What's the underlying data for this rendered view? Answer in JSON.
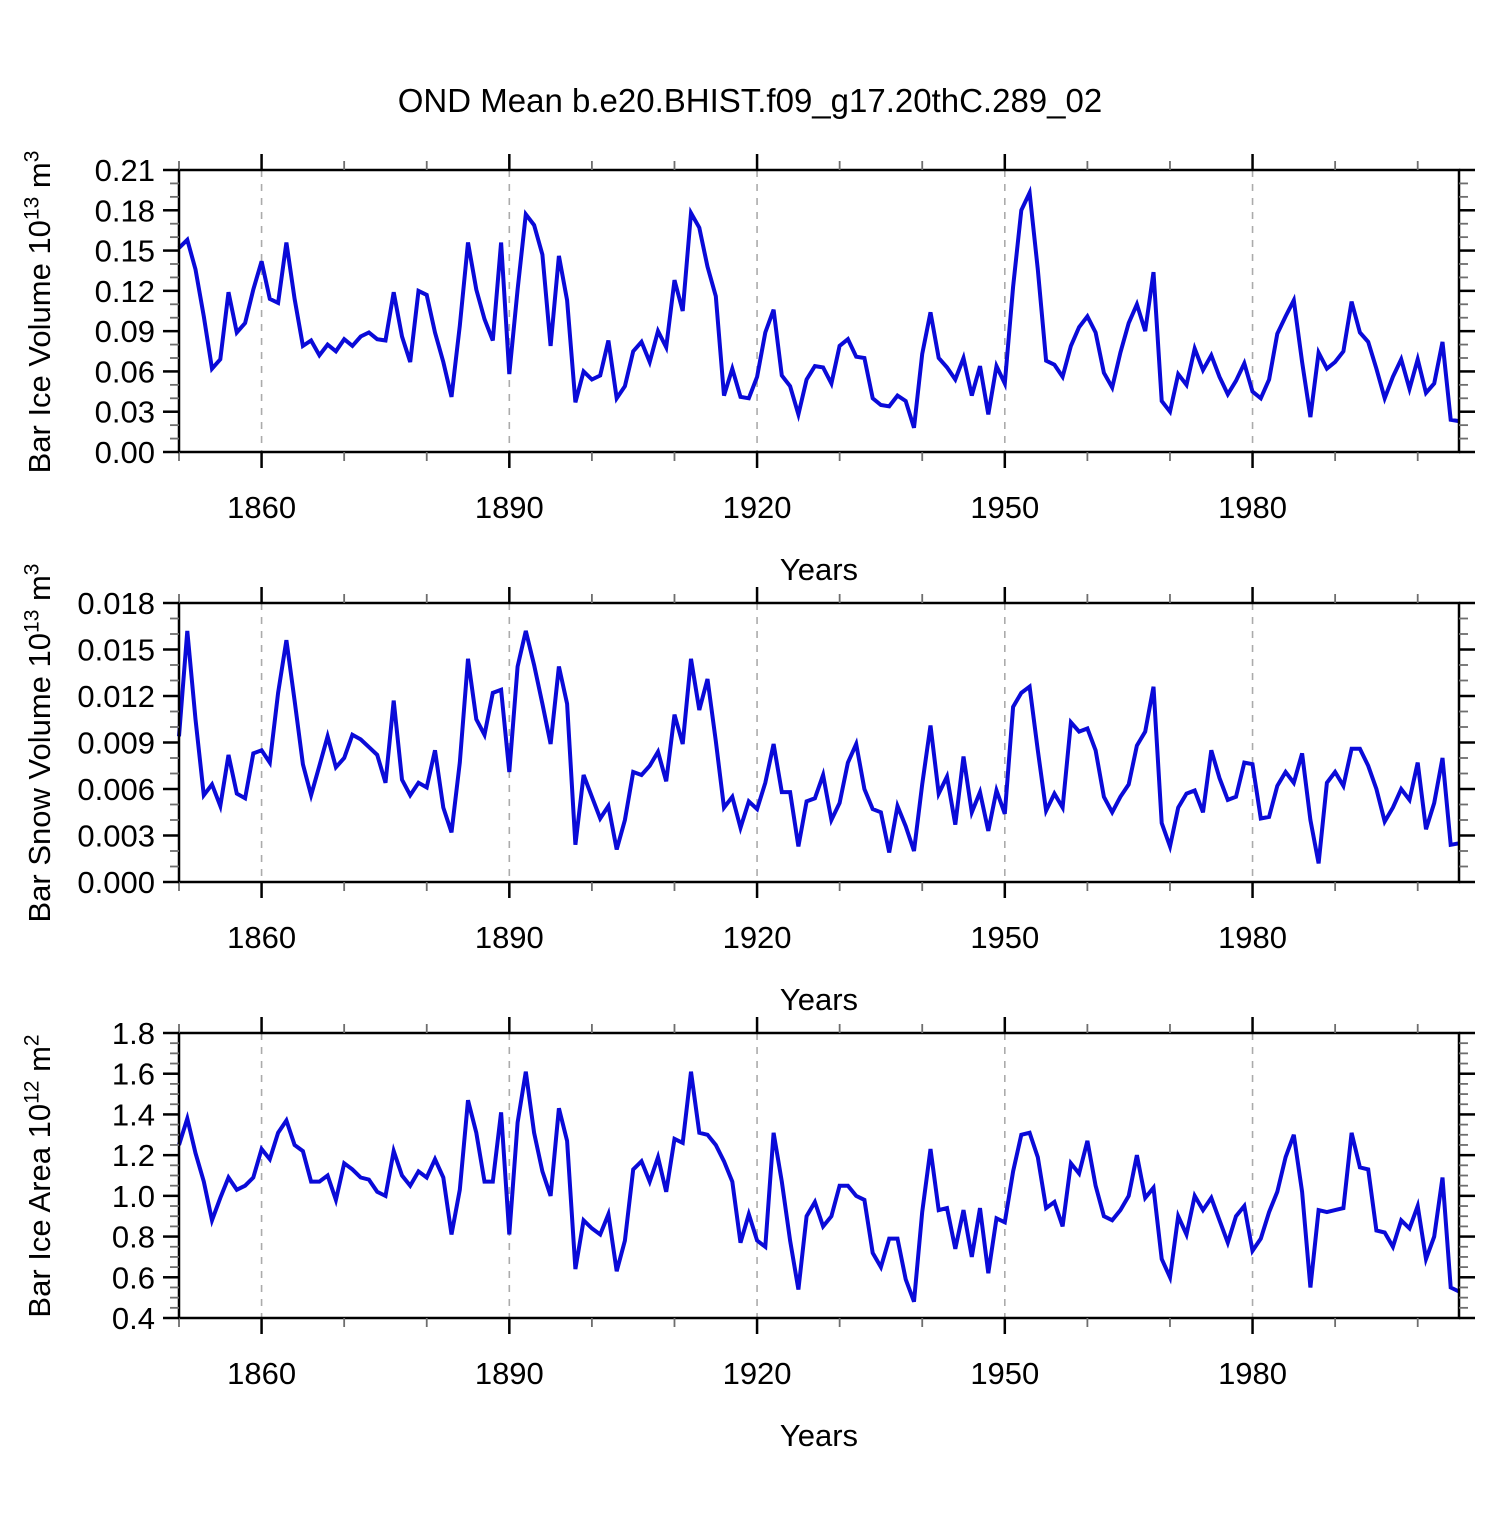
{
  "title": "OND Mean b.e20.BHIST.f09_g17.20thC.289_02",
  "chart_data": [
    {
      "type": "line",
      "name": "bar-ice-volume",
      "ylabel": {
        "text": "Bar Ice Volume 10",
        "sup": "13",
        "text2": " m",
        "sup2": "3"
      },
      "xlabel": "Years",
      "xlim": [
        1850,
        2005
      ],
      "x_start": 1850,
      "x_step": 1,
      "xticks": [
        1860,
        1890,
        1920,
        1950,
        1980
      ],
      "xtick_minor_step": 10,
      "ylim": [
        0.0,
        0.21
      ],
      "ytick_values": [
        0.0,
        0.03,
        0.06,
        0.09,
        0.12,
        0.15,
        0.18,
        0.21
      ],
      "ytick_labels": [
        "0.00",
        "0.03",
        "0.06",
        "0.09",
        "0.12",
        "0.15",
        "0.18",
        "0.21"
      ],
      "ytick_minor_step": 0.01,
      "grid_on": true,
      "legend": "none",
      "line_color": "#0a0ad8",
      "grid_color": "#ababab",
      "values": [
        0.152,
        0.158,
        0.136,
        0.101,
        0.062,
        0.069,
        0.119,
        0.089,
        0.096,
        0.121,
        0.142,
        0.114,
        0.111,
        0.156,
        0.114,
        0.079,
        0.083,
        0.072,
        0.08,
        0.075,
        0.084,
        0.079,
        0.086,
        0.089,
        0.084,
        0.083,
        0.119,
        0.086,
        0.067,
        0.12,
        0.117,
        0.089,
        0.067,
        0.041,
        0.094,
        0.156,
        0.121,
        0.099,
        0.083,
        0.156,
        0.058,
        0.121,
        0.177,
        0.169,
        0.147,
        0.079,
        0.146,
        0.113,
        0.037,
        0.06,
        0.054,
        0.057,
        0.083,
        0.04,
        0.049,
        0.075,
        0.082,
        0.067,
        0.09,
        0.078,
        0.128,
        0.105,
        0.178,
        0.167,
        0.138,
        0.116,
        0.042,
        0.062,
        0.041,
        0.04,
        0.056,
        0.089,
        0.106,
        0.057,
        0.049,
        0.028,
        0.054,
        0.064,
        0.063,
        0.051,
        0.079,
        0.084,
        0.071,
        0.07,
        0.04,
        0.035,
        0.034,
        0.042,
        0.038,
        0.018,
        0.073,
        0.104,
        0.07,
        0.063,
        0.054,
        0.07,
        0.042,
        0.064,
        0.028,
        0.064,
        0.051,
        0.123,
        0.18,
        0.193,
        0.136,
        0.068,
        0.065,
        0.056,
        0.079,
        0.093,
        0.101,
        0.089,
        0.059,
        0.048,
        0.074,
        0.096,
        0.11,
        0.09,
        0.134,
        0.038,
        0.03,
        0.058,
        0.05,
        0.077,
        0.061,
        0.072,
        0.056,
        0.043,
        0.053,
        0.066,
        0.045,
        0.04,
        0.054,
        0.088,
        0.101,
        0.113,
        0.067,
        0.026,
        0.074,
        0.062,
        0.067,
        0.075,
        0.112,
        0.089,
        0.082,
        0.062,
        0.04,
        0.056,
        0.069,
        0.047,
        0.069,
        0.044,
        0.051,
        0.082,
        0.024,
        0.023
      ]
    },
    {
      "type": "line",
      "name": "bar-snow-volume",
      "ylabel": {
        "text": "Bar Snow Volume 10",
        "sup": "13",
        "text2": " m",
        "sup2": "3"
      },
      "xlabel": "Years",
      "xlim": [
        1850,
        2005
      ],
      "x_start": 1850,
      "x_step": 1,
      "xticks": [
        1860,
        1890,
        1920,
        1950,
        1980
      ],
      "xtick_minor_step": 10,
      "ylim": [
        0.0,
        0.018
      ],
      "ytick_values": [
        0.0,
        0.003,
        0.006,
        0.009,
        0.012,
        0.015,
        0.018
      ],
      "ytick_labels": [
        "0.000",
        "0.003",
        "0.006",
        "0.009",
        "0.012",
        "0.015",
        "0.018"
      ],
      "ytick_minor_step": 0.001,
      "grid_on": true,
      "legend": "none",
      "line_color": "#0a0ad8",
      "grid_color": "#ababab",
      "values": [
        0.0094,
        0.0162,
        0.0105,
        0.0056,
        0.0063,
        0.0049,
        0.0082,
        0.0057,
        0.0054,
        0.0083,
        0.0085,
        0.0077,
        0.0122,
        0.0156,
        0.0117,
        0.0076,
        0.0056,
        0.0075,
        0.0094,
        0.0074,
        0.008,
        0.0095,
        0.0092,
        0.0087,
        0.0082,
        0.0064,
        0.0117,
        0.0066,
        0.0056,
        0.0064,
        0.0061,
        0.0085,
        0.0048,
        0.0032,
        0.0077,
        0.0144,
        0.0105,
        0.0095,
        0.0122,
        0.0124,
        0.0071,
        0.0139,
        0.0162,
        0.014,
        0.0115,
        0.0089,
        0.0139,
        0.0115,
        0.0024,
        0.0069,
        0.0055,
        0.0041,
        0.0049,
        0.0021,
        0.004,
        0.0071,
        0.0069,
        0.0075,
        0.0084,
        0.0065,
        0.0108,
        0.0089,
        0.0144,
        0.0111,
        0.0131,
        0.0091,
        0.0048,
        0.0055,
        0.0035,
        0.0052,
        0.0047,
        0.0064,
        0.0089,
        0.0058,
        0.0058,
        0.0023,
        0.0052,
        0.0054,
        0.0069,
        0.004,
        0.0051,
        0.0077,
        0.0089,
        0.006,
        0.0047,
        0.0045,
        0.0019,
        0.0049,
        0.0036,
        0.002,
        0.0063,
        0.0101,
        0.0057,
        0.0068,
        0.0037,
        0.0081,
        0.0045,
        0.0058,
        0.0033,
        0.0059,
        0.0044,
        0.0113,
        0.0122,
        0.0126,
        0.0085,
        0.0046,
        0.0057,
        0.0048,
        0.0103,
        0.0097,
        0.0099,
        0.0085,
        0.0055,
        0.0045,
        0.0055,
        0.0063,
        0.0088,
        0.0097,
        0.0126,
        0.0038,
        0.0023,
        0.0048,
        0.0057,
        0.0059,
        0.0045,
        0.0085,
        0.0067,
        0.0053,
        0.0055,
        0.0077,
        0.0076,
        0.0041,
        0.0042,
        0.0062,
        0.0071,
        0.0064,
        0.0083,
        0.004,
        0.0012,
        0.0064,
        0.0071,
        0.0062,
        0.0086,
        0.0086,
        0.0075,
        0.006,
        0.0039,
        0.0048,
        0.006,
        0.0053,
        0.0077,
        0.0034,
        0.0051,
        0.008,
        0.0024,
        0.0025
      ]
    },
    {
      "type": "line",
      "name": "bar-ice-area",
      "ylabel": {
        "text": "Bar Ice Area 10",
        "sup": "12",
        "text2": " m",
        "sup2": "2"
      },
      "xlabel": "Years",
      "xlim": [
        1850,
        2005
      ],
      "x_start": 1850,
      "x_step": 1,
      "xticks": [
        1860,
        1890,
        1920,
        1950,
        1980
      ],
      "xtick_minor_step": 10,
      "ylim": [
        0.4,
        1.8
      ],
      "ytick_values": [
        0.4,
        0.6,
        0.8,
        1.0,
        1.2,
        1.4,
        1.6,
        1.8
      ],
      "ytick_labels": [
        "0.4",
        "0.6",
        "0.8",
        "1.0",
        "1.2",
        "1.4",
        "1.6",
        "1.8"
      ],
      "ytick_minor_step": 0.05,
      "grid_on": true,
      "legend": "none",
      "line_color": "#0a0ad8",
      "grid_color": "#ababab",
      "values": [
        1.25,
        1.38,
        1.21,
        1.07,
        0.88,
        0.99,
        1.09,
        1.03,
        1.05,
        1.09,
        1.23,
        1.18,
        1.31,
        1.37,
        1.25,
        1.22,
        1.07,
        1.07,
        1.1,
        0.98,
        1.16,
        1.13,
        1.09,
        1.08,
        1.02,
        1.0,
        1.22,
        1.1,
        1.05,
        1.12,
        1.09,
        1.18,
        1.09,
        0.81,
        1.03,
        1.47,
        1.31,
        1.07,
        1.07,
        1.41,
        0.81,
        1.36,
        1.61,
        1.31,
        1.12,
        1.0,
        1.43,
        1.27,
        0.64,
        0.88,
        0.84,
        0.81,
        0.91,
        0.63,
        0.78,
        1.13,
        1.17,
        1.07,
        1.19,
        1.02,
        1.28,
        1.26,
        1.61,
        1.31,
        1.3,
        1.25,
        1.17,
        1.07,
        0.77,
        0.91,
        0.78,
        0.75,
        1.31,
        1.07,
        0.78,
        0.54,
        0.9,
        0.97,
        0.85,
        0.9,
        1.05,
        1.05,
        1.0,
        0.98,
        0.72,
        0.65,
        0.79,
        0.79,
        0.59,
        0.48,
        0.92,
        1.23,
        0.93,
        0.94,
        0.74,
        0.93,
        0.7,
        0.94,
        0.62,
        0.89,
        0.87,
        1.12,
        1.3,
        1.31,
        1.19,
        0.94,
        0.97,
        0.85,
        1.16,
        1.11,
        1.27,
        1.05,
        0.9,
        0.88,
        0.93,
        1.0,
        1.2,
        0.99,
        1.04,
        0.69,
        0.6,
        0.9,
        0.81,
        1.0,
        0.93,
        0.99,
        0.88,
        0.77,
        0.9,
        0.95,
        0.73,
        0.79,
        0.92,
        1.02,
        1.19,
        1.3,
        1.02,
        0.55,
        0.93,
        0.92,
        0.93,
        0.94,
        1.31,
        1.14,
        1.13,
        0.83,
        0.82,
        0.75,
        0.88,
        0.84,
        0.95,
        0.69,
        0.8,
        1.09,
        0.55,
        0.53
      ]
    }
  ]
}
